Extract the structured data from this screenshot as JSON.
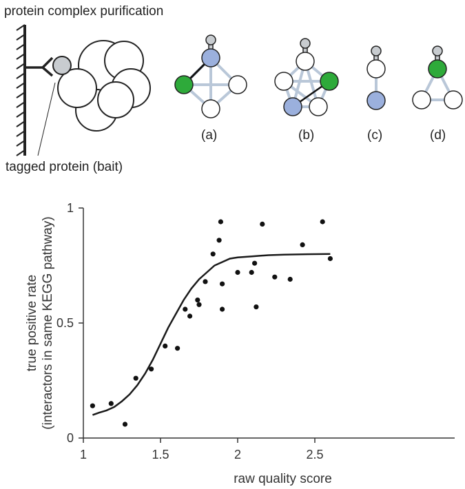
{
  "figure": {
    "top_title": "protein complex purification",
    "bait_label": "tagged protein (bait)",
    "subpanels": [
      "(a)",
      "(b)",
      "(c)",
      "(d)"
    ],
    "colors": {
      "green": "#2eaa3a",
      "blue": "#9bb0dd",
      "edge": "#b9c7d8",
      "tag": "#c8ccd0"
    }
  },
  "chart_data": {
    "type": "scatter",
    "xlabel": "raw quality score",
    "ylabel_line1": "true positive rate",
    "ylabel_line2": "(interactors in same KEGG pathway)",
    "xlim": [
      1,
      2.65
    ],
    "ylim": [
      0,
      1
    ],
    "xticks": [
      "1",
      "1.5",
      "2",
      "2.5"
    ],
    "xtick_values": [
      1,
      1.5,
      2,
      2.5
    ],
    "yticks": [
      "0",
      "0.5",
      "1"
    ],
    "ytick_values": [
      0,
      0.5,
      1
    ],
    "points": [
      [
        1.06,
        0.14
      ],
      [
        1.18,
        0.15
      ],
      [
        1.27,
        0.06
      ],
      [
        1.34,
        0.26
      ],
      [
        1.44,
        0.3
      ],
      [
        1.53,
        0.4
      ],
      [
        1.61,
        0.39
      ],
      [
        1.66,
        0.56
      ],
      [
        1.69,
        0.53
      ],
      [
        1.74,
        0.6
      ],
      [
        1.75,
        0.58
      ],
      [
        1.79,
        0.68
      ],
      [
        1.84,
        0.8
      ],
      [
        1.88,
        0.86
      ],
      [
        1.89,
        0.94
      ],
      [
        1.9,
        0.67
      ],
      [
        1.9,
        0.56
      ],
      [
        2.0,
        0.72
      ],
      [
        2.09,
        0.72
      ],
      [
        2.11,
        0.76
      ],
      [
        2.12,
        0.57
      ],
      [
        2.16,
        0.93
      ],
      [
        2.24,
        0.7
      ],
      [
        2.34,
        0.69
      ],
      [
        2.42,
        0.84
      ],
      [
        2.55,
        0.94
      ],
      [
        2.6,
        0.78
      ]
    ],
    "fit_curve": [
      [
        1.06,
        0.1
      ],
      [
        1.1,
        0.11
      ],
      [
        1.15,
        0.12
      ],
      [
        1.2,
        0.135
      ],
      [
        1.25,
        0.16
      ],
      [
        1.3,
        0.19
      ],
      [
        1.35,
        0.23
      ],
      [
        1.4,
        0.28
      ],
      [
        1.45,
        0.34
      ],
      [
        1.5,
        0.41
      ],
      [
        1.55,
        0.48
      ],
      [
        1.6,
        0.54
      ],
      [
        1.65,
        0.6
      ],
      [
        1.7,
        0.65
      ],
      [
        1.75,
        0.69
      ],
      [
        1.8,
        0.72
      ],
      [
        1.85,
        0.75
      ],
      [
        1.9,
        0.765
      ],
      [
        1.95,
        0.78
      ],
      [
        2.0,
        0.785
      ],
      [
        2.1,
        0.79
      ],
      [
        2.2,
        0.795
      ],
      [
        2.3,
        0.797
      ],
      [
        2.45,
        0.799
      ],
      [
        2.6,
        0.8
      ]
    ]
  }
}
